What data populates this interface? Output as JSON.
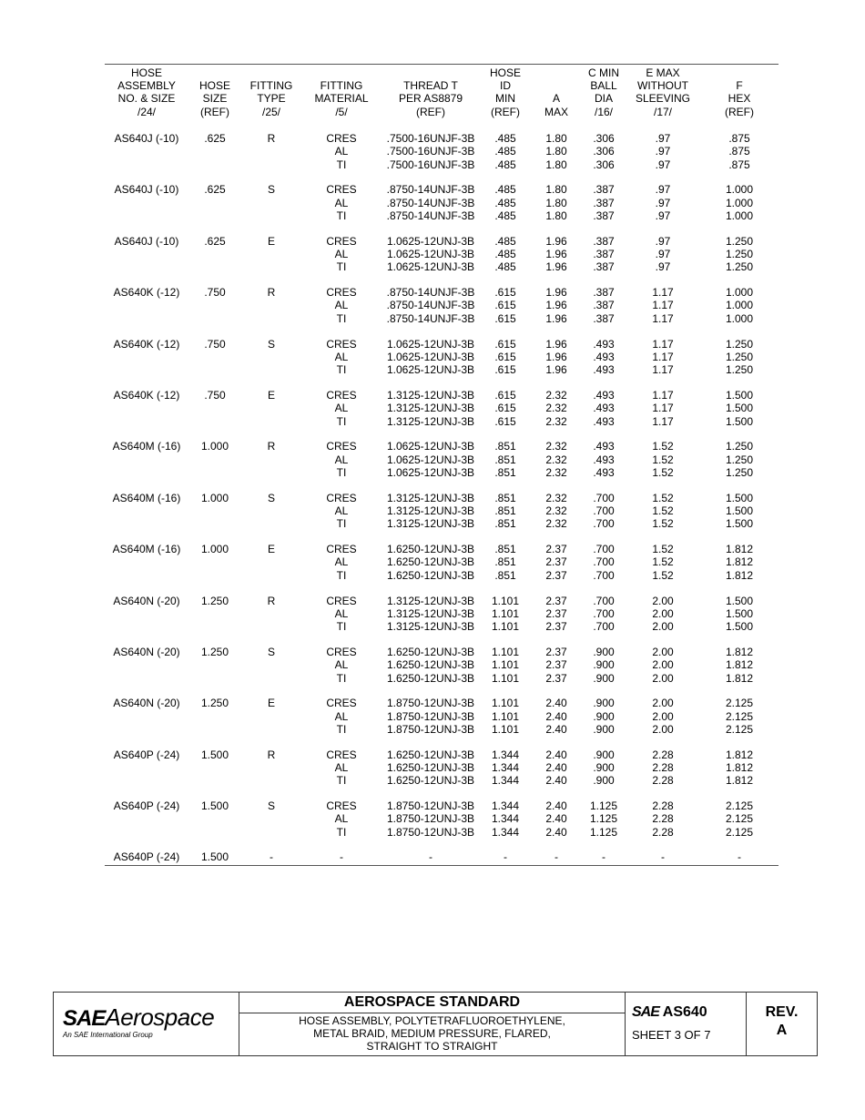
{
  "headers": [
    [
      "HOSE",
      "ASSEMBLY",
      "NO. & SIZE",
      "/24/"
    ],
    [
      "HOSE",
      "SIZE",
      "(REF)"
    ],
    [
      "FITTING",
      "TYPE",
      "/25/"
    ],
    [
      "FITTING",
      "MATERIAL",
      "/5/"
    ],
    [
      "THREAD T",
      "PER AS8879",
      "(REF)"
    ],
    [
      "HOSE",
      "ID",
      "MIN",
      "(REF)"
    ],
    [
      "A",
      "MAX"
    ],
    [
      "C MIN",
      "BALL",
      "DIA",
      "/16/"
    ],
    [
      "E MAX",
      "WITHOUT",
      "SLEEVING",
      "/17/"
    ],
    [
      "F",
      "HEX",
      "(REF)"
    ]
  ],
  "groups": [
    {
      "assembly": "AS640J  (-10)",
      "size": ".625",
      "type": "R",
      "rows": [
        [
          "CRES",
          ".7500-16UNJF-3B",
          ".485",
          "1.80",
          ".306",
          ".97",
          ".875"
        ],
        [
          "AL",
          ".7500-16UNJF-3B",
          ".485",
          "1.80",
          ".306",
          ".97",
          ".875"
        ],
        [
          "TI",
          ".7500-16UNJF-3B",
          ".485",
          "1.80",
          ".306",
          ".97",
          ".875"
        ]
      ]
    },
    {
      "assembly": "AS640J  (-10)",
      "size": ".625",
      "type": "S",
      "rows": [
        [
          "CRES",
          ".8750-14UNJF-3B",
          ".485",
          "1.80",
          ".387",
          ".97",
          "1.000"
        ],
        [
          "AL",
          ".8750-14UNJF-3B",
          ".485",
          "1.80",
          ".387",
          ".97",
          "1.000"
        ],
        [
          "TI",
          ".8750-14UNJF-3B",
          ".485",
          "1.80",
          ".387",
          ".97",
          "1.000"
        ]
      ]
    },
    {
      "assembly": "AS640J  (-10)",
      "size": ".625",
      "type": "E",
      "rows": [
        [
          "CRES",
          "1.0625-12UNJ-3B",
          ".485",
          "1.96",
          ".387",
          ".97",
          "1.250"
        ],
        [
          "AL",
          "1.0625-12UNJ-3B",
          ".485",
          "1.96",
          ".387",
          ".97",
          "1.250"
        ],
        [
          "TI",
          "1.0625-12UNJ-3B",
          ".485",
          "1.96",
          ".387",
          ".97",
          "1.250"
        ]
      ]
    },
    {
      "assembly": "AS640K  (-12)",
      "size": ".750",
      "type": "R",
      "rows": [
        [
          "CRES",
          ".8750-14UNJF-3B",
          ".615",
          "1.96",
          ".387",
          "1.17",
          "1.000"
        ],
        [
          "AL",
          ".8750-14UNJF-3B",
          ".615",
          "1.96",
          ".387",
          "1.17",
          "1.000"
        ],
        [
          "TI",
          ".8750-14UNJF-3B",
          ".615",
          "1.96",
          ".387",
          "1.17",
          "1.000"
        ]
      ]
    },
    {
      "assembly": "AS640K  (-12)",
      "size": ".750",
      "type": "S",
      "rows": [
        [
          "CRES",
          "1.0625-12UNJ-3B",
          ".615",
          "1.96",
          ".493",
          "1.17",
          "1.250"
        ],
        [
          "AL",
          "1.0625-12UNJ-3B",
          ".615",
          "1.96",
          ".493",
          "1.17",
          "1.250"
        ],
        [
          "TI",
          "1.0625-12UNJ-3B",
          ".615",
          "1.96",
          ".493",
          "1.17",
          "1.250"
        ]
      ]
    },
    {
      "assembly": "AS640K  (-12)",
      "size": ".750",
      "type": "E",
      "rows": [
        [
          "CRES",
          "1.3125-12UNJ-3B",
          ".615",
          "2.32",
          ".493",
          "1.17",
          "1.500"
        ],
        [
          "AL",
          "1.3125-12UNJ-3B",
          ".615",
          "2.32",
          ".493",
          "1.17",
          "1.500"
        ],
        [
          "TI",
          "1.3125-12UNJ-3B",
          ".615",
          "2.32",
          ".493",
          "1.17",
          "1.500"
        ]
      ]
    },
    {
      "assembly": "AS640M  (-16)",
      "size": "1.000",
      "type": "R",
      "rows": [
        [
          "CRES",
          "1.0625-12UNJ-3B",
          ".851",
          "2.32",
          ".493",
          "1.52",
          "1.250"
        ],
        [
          "AL",
          "1.0625-12UNJ-3B",
          ".851",
          "2.32",
          ".493",
          "1.52",
          "1.250"
        ],
        [
          "TI",
          "1.0625-12UNJ-3B",
          ".851",
          "2.32",
          ".493",
          "1.52",
          "1.250"
        ]
      ]
    },
    {
      "assembly": "AS640M  (-16)",
      "size": "1.000",
      "type": "S",
      "rows": [
        [
          "CRES",
          "1.3125-12UNJ-3B",
          ".851",
          "2.32",
          ".700",
          "1.52",
          "1.500"
        ],
        [
          "AL",
          "1.3125-12UNJ-3B",
          ".851",
          "2.32",
          ".700",
          "1.52",
          "1.500"
        ],
        [
          "TI",
          "1.3125-12UNJ-3B",
          ".851",
          "2.32",
          ".700",
          "1.52",
          "1.500"
        ]
      ]
    },
    {
      "assembly": "AS640M  (-16)",
      "size": "1.000",
      "type": "E",
      "rows": [
        [
          "CRES",
          "1.6250-12UNJ-3B",
          ".851",
          "2.37",
          ".700",
          "1.52",
          "1.812"
        ],
        [
          "AL",
          "1.6250-12UNJ-3B",
          ".851",
          "2.37",
          ".700",
          "1.52",
          "1.812"
        ],
        [
          "TI",
          "1.6250-12UNJ-3B",
          ".851",
          "2.37",
          ".700",
          "1.52",
          "1.812"
        ]
      ]
    },
    {
      "assembly": "AS640N  (-20)",
      "size": "1.250",
      "type": "R",
      "rows": [
        [
          "CRES",
          "1.3125-12UNJ-3B",
          "1.101",
          "2.37",
          ".700",
          "2.00",
          "1.500"
        ],
        [
          "AL",
          "1.3125-12UNJ-3B",
          "1.101",
          "2.37",
          ".700",
          "2.00",
          "1.500"
        ],
        [
          "TI",
          "1.3125-12UNJ-3B",
          "1.101",
          "2.37",
          ".700",
          "2.00",
          "1.500"
        ]
      ]
    },
    {
      "assembly": "AS640N  (-20)",
      "size": "1.250",
      "type": "S",
      "rows": [
        [
          "CRES",
          "1.6250-12UNJ-3B",
          "1.101",
          "2.37",
          ".900",
          "2.00",
          "1.812"
        ],
        [
          "AL",
          "1.6250-12UNJ-3B",
          "1.101",
          "2.37",
          ".900",
          "2.00",
          "1.812"
        ],
        [
          "TI",
          "1.6250-12UNJ-3B",
          "1.101",
          "2.37",
          ".900",
          "2.00",
          "1.812"
        ]
      ]
    },
    {
      "assembly": "AS640N  (-20)",
      "size": "1.250",
      "type": "E",
      "rows": [
        [
          "CRES",
          "1.8750-12UNJ-3B",
          "1.101",
          "2.40",
          ".900",
          "2.00",
          "2.125"
        ],
        [
          "AL",
          "1.8750-12UNJ-3B",
          "1.101",
          "2.40",
          ".900",
          "2.00",
          "2.125"
        ],
        [
          "TI",
          "1.8750-12UNJ-3B",
          "1.101",
          "2.40",
          ".900",
          "2.00",
          "2.125"
        ]
      ]
    },
    {
      "assembly": "AS640P  (-24)",
      "size": "1.500",
      "type": "R",
      "rows": [
        [
          "CRES",
          "1.6250-12UNJ-3B",
          "1.344",
          "2.40",
          ".900",
          "2.28",
          "1.812"
        ],
        [
          "AL",
          "1.6250-12UNJ-3B",
          "1.344",
          "2.40",
          ".900",
          "2.28",
          "1.812"
        ],
        [
          "TI",
          "1.6250-12UNJ-3B",
          "1.344",
          "2.40",
          ".900",
          "2.28",
          "1.812"
        ]
      ]
    },
    {
      "assembly": "AS640P  (-24)",
      "size": "1.500",
      "type": "S",
      "rows": [
        [
          "CRES",
          "1.8750-12UNJ-3B",
          "1.344",
          "2.40",
          "1.125",
          "2.28",
          "2.125"
        ],
        [
          "AL",
          "1.8750-12UNJ-3B",
          "1.344",
          "2.40",
          "1.125",
          "2.28",
          "2.125"
        ],
        [
          "TI",
          "1.8750-12UNJ-3B",
          "1.344",
          "2.40",
          "1.125",
          "2.28",
          "2.125"
        ]
      ]
    },
    {
      "assembly": "AS640P  (-24)",
      "size": "1.500",
      "type": "-",
      "rows": [
        [
          "-",
          "-",
          "-",
          "-",
          "-",
          "-",
          "-"
        ]
      ]
    }
  ],
  "footer": {
    "logo_brand": "SAE",
    "logo_word": "Aerospace",
    "logo_tagline": "An SAE International Group",
    "title": "AEROSPACE STANDARD",
    "subtitle_lines": [
      "HOSE ASSEMBLY, POLYTETRAFLUOROETHYLENE,",
      "METAL BRAID, MEDIUM PRESSURE, FLARED,",
      "STRAIGHT TO STRAIGHT"
    ],
    "doc_brand": "SAE",
    "doc_number": "AS640",
    "sheet": "SHEET 3 OF 7",
    "rev_label": "REV.",
    "rev_value": "A"
  }
}
